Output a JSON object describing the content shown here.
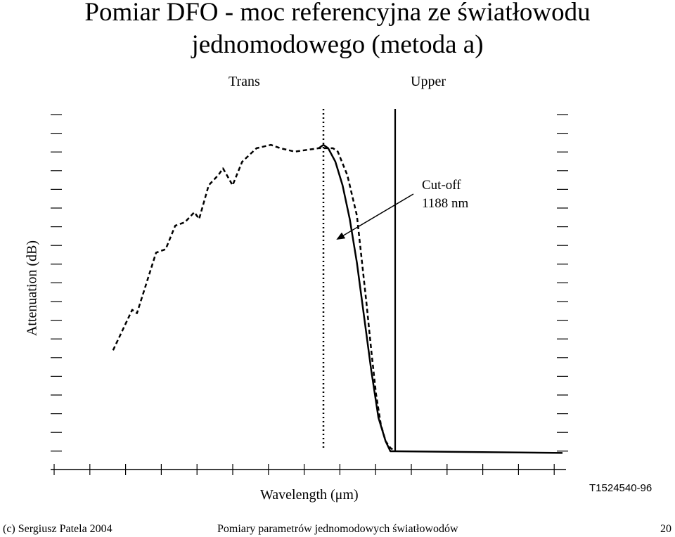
{
  "slide": {
    "title_line1": "Pomiar DFO - moc referencyjna ze światłowodu",
    "title_line2": "jednomodowego (metoda a)",
    "figure_code": "T1524540-96",
    "footer_left": "(c) Sergiusz Patela 2004",
    "footer_center": "Pomiary parametrów jednomodowych światłowodów",
    "footer_page": "20"
  },
  "chart_data": {
    "type": "line",
    "xlabel": "Wavelength (μm)",
    "ylabel": "Attenuation (dB)",
    "top_labels": {
      "trans": "Trans",
      "upper": "Upper"
    },
    "annotation": {
      "line1": "Cut-off",
      "line2": "1188 nm",
      "value_nm": 1188
    },
    "grid": false,
    "series": [
      {
        "style": "dashed",
        "points": [
          [
            0.06,
            0.3
          ],
          [
            0.09,
            0.39
          ],
          [
            0.1,
            0.42
          ],
          [
            0.11,
            0.41
          ],
          [
            0.13,
            0.5
          ],
          [
            0.15,
            0.59
          ],
          [
            0.17,
            0.6
          ],
          [
            0.19,
            0.67
          ],
          [
            0.21,
            0.68
          ],
          [
            0.23,
            0.71
          ],
          [
            0.24,
            0.69
          ],
          [
            0.26,
            0.79
          ],
          [
            0.28,
            0.82
          ],
          [
            0.29,
            0.84
          ],
          [
            0.31,
            0.79
          ],
          [
            0.33,
            0.86
          ],
          [
            0.36,
            0.9
          ],
          [
            0.39,
            0.91
          ],
          [
            0.41,
            0.9
          ],
          [
            0.44,
            0.89
          ],
          [
            0.49,
            0.9
          ],
          [
            0.52,
            0.9
          ],
          [
            0.53,
            0.89
          ],
          [
            0.55,
            0.82
          ],
          [
            0.57,
            0.7
          ],
          [
            0.58,
            0.57
          ],
          [
            0.59,
            0.44
          ],
          [
            0.6,
            0.3
          ],
          [
            0.61,
            0.17
          ],
          [
            0.62,
            0.08
          ],
          [
            0.63,
            0.03
          ],
          [
            0.64,
            0.01
          ],
          [
            0.65,
            0.0
          ]
        ]
      },
      {
        "style": "solid",
        "points": [
          [
            0.49,
            0.9
          ],
          [
            0.5,
            0.91
          ],
          [
            0.51,
            0.9
          ],
          [
            0.525,
            0.86
          ],
          [
            0.54,
            0.79
          ],
          [
            0.555,
            0.69
          ],
          [
            0.57,
            0.56
          ],
          [
            0.585,
            0.4
          ],
          [
            0.6,
            0.24
          ],
          [
            0.615,
            0.1
          ],
          [
            0.63,
            0.03
          ],
          [
            0.64,
            0.0
          ],
          [
            0.65,
            0.0
          ],
          [
            1.0,
            -0.005
          ]
        ]
      }
    ],
    "vertical_markers": [
      {
        "style": "dotted",
        "x": 0.5
      },
      {
        "style": "solid",
        "x": 0.65
      }
    ]
  }
}
